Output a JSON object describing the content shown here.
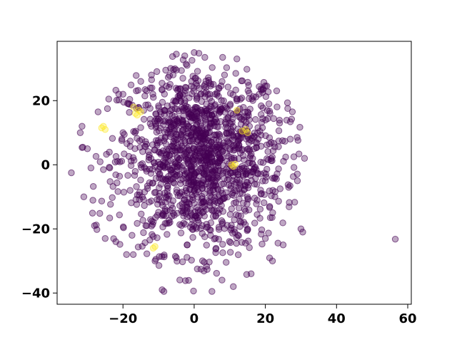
{
  "chart_data": {
    "type": "scatter",
    "title": "",
    "xlabel": "",
    "ylabel": "",
    "xlim": [
      -38.5,
      61
    ],
    "ylim": [
      -43.5,
      38.5
    ],
    "xticks": [
      -20,
      0,
      20,
      40,
      60
    ],
    "yticks": [
      -40,
      -20,
      0,
      20
    ],
    "xtick_labels": [
      "−20",
      "0",
      "20",
      "40",
      "60"
    ],
    "ytick_labels": [
      "−40",
      "−20",
      "0",
      "20"
    ],
    "grid": false,
    "legend": "none",
    "point_alpha": 0.35,
    "series": [
      {
        "color": "#440154",
        "description": "dense cloud of points roughly centered at (2, 2), spread about x in [-35, 31], y in [-40, 35]",
        "point_count_estimate": 1500,
        "sample_points": [
          [
            -34.5,
            -2.5
          ],
          [
            -32,
            10
          ],
          [
            -31.5,
            12
          ],
          [
            -31,
            -10
          ],
          [
            -30,
            5
          ],
          [
            -29,
            -1
          ],
          [
            -28,
            -19
          ],
          [
            -27.5,
            -18.8
          ],
          [
            -27,
            16.5
          ],
          [
            -25,
            -23
          ],
          [
            -24,
            20.5
          ],
          [
            -22,
            -24
          ],
          [
            -20,
            22
          ],
          [
            -19,
            -28
          ],
          [
            -15,
            26
          ],
          [
            -12,
            28
          ],
          [
            -11,
            -30
          ],
          [
            -9,
            -39
          ],
          [
            -8.5,
            -39.5
          ],
          [
            -8,
            29.5
          ],
          [
            -5,
            34.5
          ],
          [
            -2,
            31
          ],
          [
            0,
            35
          ],
          [
            3,
            33.5
          ],
          [
            5,
            -39.5
          ],
          [
            8,
            33.5
          ],
          [
            11,
            -38
          ],
          [
            12,
            33
          ],
          [
            16,
            -34
          ],
          [
            20,
            -23
          ],
          [
            21,
            19
          ],
          [
            22,
            -30
          ],
          [
            24,
            13
          ],
          [
            25,
            -25
          ],
          [
            27,
            8
          ],
          [
            28,
            2.5
          ],
          [
            29,
            -5
          ],
          [
            30,
            -20
          ],
          [
            30.5,
            -21
          ],
          [
            31,
            2
          ],
          [
            56.5,
            -23.2
          ],
          [
            2,
            12
          ],
          [
            0,
            15
          ],
          [
            4,
            10
          ],
          [
            -3,
            5
          ],
          [
            6,
            -5
          ],
          [
            -8,
            -10
          ],
          [
            10,
            5
          ],
          [
            -5,
            20
          ],
          [
            15,
            -10
          ],
          [
            -15,
            0
          ],
          [
            12,
            20
          ],
          [
            -12,
            12
          ],
          [
            8,
            -18
          ],
          [
            -2,
            -25
          ],
          [
            18,
            8
          ],
          [
            -18,
            -8
          ],
          [
            3,
            25
          ],
          [
            20,
            -5
          ],
          [
            -20,
            10
          ],
          [
            14,
            15
          ],
          [
            0,
            -12
          ],
          [
            5,
            2
          ]
        ]
      },
      {
        "color": "#fde725",
        "description": "small cluster of highlighted points",
        "points": [
          [
            -26,
            11.5
          ],
          [
            -25.5,
            12
          ],
          [
            -25,
            11
          ],
          [
            -17,
            18
          ],
          [
            -16.5,
            16
          ],
          [
            -16,
            15.5
          ],
          [
            -15.5,
            17
          ],
          [
            -15,
            16.5
          ],
          [
            10.5,
            0
          ],
          [
            11,
            -0.5
          ],
          [
            11.5,
            0.2
          ],
          [
            12,
            17
          ],
          [
            13.5,
            10.5
          ],
          [
            14.5,
            11
          ],
          [
            15,
            10
          ],
          [
            -11.5,
            -26
          ],
          [
            -11,
            -25.5
          ]
        ]
      }
    ]
  }
}
